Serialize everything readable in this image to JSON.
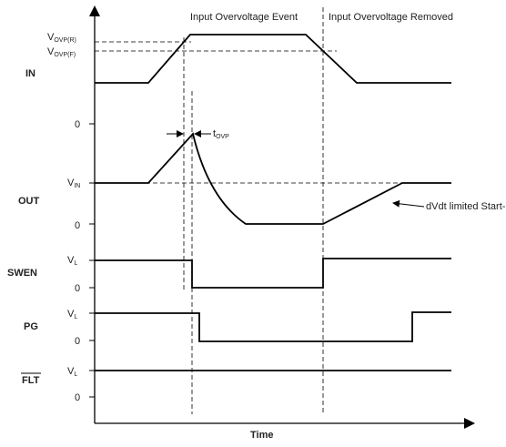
{
  "events": {
    "overvoltage": "Input Overvoltage Event",
    "removed": "Input Overvoltage Removed"
  },
  "x_axis_label": "Time",
  "signals": {
    "in": "IN",
    "out": "OUT",
    "swen": "SWEN",
    "pg": "PG",
    "flt": "FLT"
  },
  "levels": {
    "vovp_r": {
      "main": "V",
      "sub": "OVP(R)"
    },
    "vovp_f": {
      "main": "V",
      "sub": "OVP(F)"
    },
    "vin": {
      "main": "V",
      "sub": "IN"
    },
    "vl": {
      "main": "V",
      "sub": "L"
    },
    "zero": "0"
  },
  "annotations": {
    "tovp": {
      "main": "t",
      "sub": "OVP"
    },
    "dvdt": "dVdt limited Start-up"
  }
}
